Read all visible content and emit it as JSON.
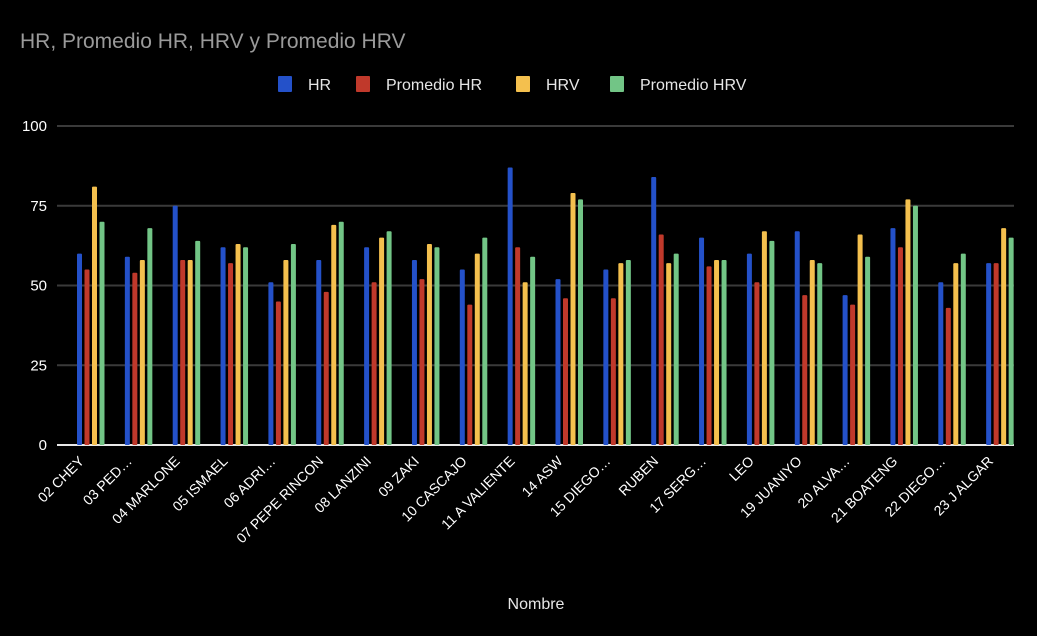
{
  "chart_data": {
    "type": "bar",
    "title": "HR, Promedio HR, HRV  y Promedio HRV",
    "xlabel": "Nombre",
    "ylabel": "",
    "ylim": [
      0,
      100
    ],
    "yticks": [
      0,
      25,
      50,
      75,
      100
    ],
    "ytick_labels": [
      "0",
      "25",
      "50",
      "75",
      "100"
    ],
    "grid": true,
    "legend_position": "top-center",
    "categories": [
      "02 CHEY",
      "03 PED…",
      "04  MARLONE",
      "05 ISMAEL",
      "06 ADRI…",
      "07 PEPE RINCON",
      "08 LANZINI",
      "09 ZAKI",
      "10 CASCAJO",
      "11 A VALIENTE",
      "14 ASW",
      "15  DIEGO…",
      "RUBEN",
      "17 SERG…",
      "LEO",
      "19 JUANIYO",
      "20 ALVA…",
      "21 BOATENG",
      "22 DIEGO…",
      "23 J ALGAR"
    ],
    "series": [
      {
        "name": "HR",
        "color": "#2451c9",
        "values": [
          60,
          59,
          75,
          62,
          51,
          58,
          62,
          58,
          55,
          87,
          52,
          55,
          84,
          65,
          60,
          67,
          47,
          68,
          51,
          57
        ]
      },
      {
        "name": "Promedio HR",
        "color": "#c0392b",
        "values": [
          55,
          54,
          58,
          57,
          45,
          48,
          51,
          52,
          44,
          62,
          46,
          46,
          66,
          56,
          51,
          47,
          44,
          62,
          43,
          57
        ]
      },
      {
        "name": "HRV",
        "color": "#f4c04e",
        "values": [
          81,
          58,
          58,
          63,
          58,
          69,
          65,
          63,
          60,
          51,
          79,
          57,
          57,
          58,
          67,
          58,
          66,
          77,
          57,
          68
        ]
      },
      {
        "name": "Promedio HRV",
        "color": "#72c586",
        "values": [
          70,
          68,
          64,
          62,
          63,
          70,
          67,
          62,
          65,
          59,
          77,
          58,
          60,
          58,
          64,
          57,
          59,
          75,
          60,
          65
        ]
      }
    ]
  }
}
